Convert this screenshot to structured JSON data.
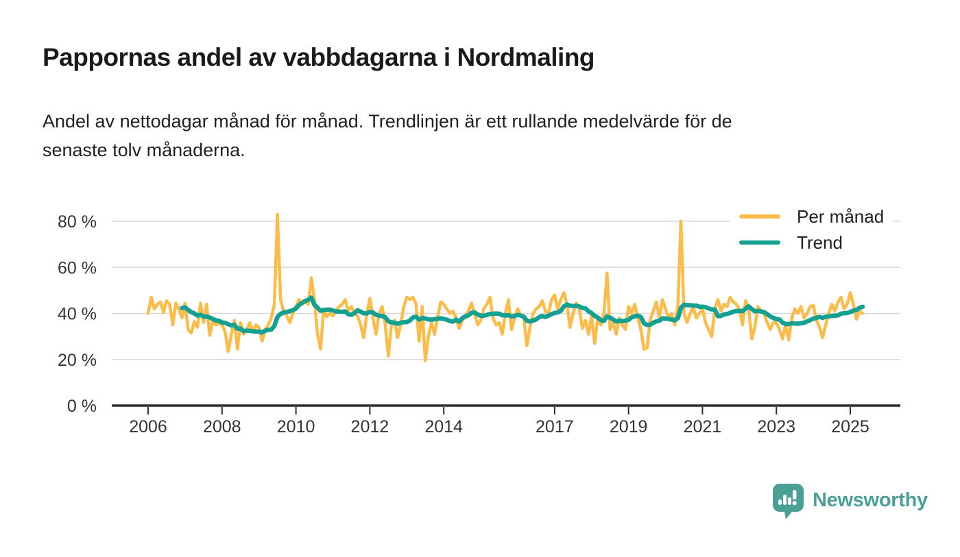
{
  "chart_data": {
    "type": "line",
    "title": "Pappornas andel av vabbdagarna i Nordmaling",
    "subtitle_lines": [
      "Andel av nettodagar månad för månad. Trendlinjen är ett rullande medelvärde för de",
      "senaste tolv månaderna."
    ],
    "unit": "%",
    "grid": true,
    "legend_position": "top-right",
    "xlabel": "",
    "ylabel": "",
    "ylim": [
      0,
      88
    ],
    "y_ticks": [
      0,
      20,
      40,
      60,
      80
    ],
    "y_tick_suffix": " %",
    "x_ticks": [
      2006,
      2008,
      2010,
      2012,
      2014,
      2017,
      2019,
      2021,
      2023,
      2025
    ],
    "x_start": {
      "year": 2006,
      "month": 1
    },
    "series": [
      {
        "name": "Per månad",
        "color": "#FBBC49",
        "monthly_values": [
          40,
          47,
          42,
          44,
          45,
          40.5,
          45.5,
          44,
          35,
          44.5,
          42,
          38,
          44.5,
          33,
          31.5,
          36.5,
          34,
          44.5,
          36,
          44,
          30.5,
          36.5,
          35,
          36,
          35,
          32,
          23.5,
          31,
          37,
          24.5,
          36,
          31,
          33,
          36,
          32,
          35,
          34,
          28,
          33,
          35,
          38,
          44,
          83,
          46,
          41,
          39,
          36,
          40,
          43,
          46,
          44,
          45,
          44,
          55.5,
          46,
          31,
          24.5,
          42,
          38.5,
          40,
          39,
          41,
          43,
          44,
          46,
          41,
          43,
          40,
          39,
          35,
          29.5,
          40,
          46.5,
          38,
          31,
          40,
          43,
          35,
          21.5,
          35,
          37,
          29.5,
          35,
          43,
          47,
          46,
          47,
          44,
          28,
          43,
          19.5,
          30,
          36,
          31,
          38,
          45,
          44,
          42,
          40,
          41,
          38,
          33.5,
          37,
          39,
          41,
          44.5,
          40,
          35,
          37,
          42,
          44,
          47,
          38,
          35,
          36,
          31,
          40,
          46,
          33,
          38,
          42,
          39,
          38,
          26,
          34,
          40,
          42,
          43,
          45.5,
          41,
          40,
          46,
          48,
          42,
          46,
          49,
          44,
          34,
          40,
          44.5,
          42,
          33.5,
          37,
          31,
          39,
          27,
          38,
          35,
          40,
          57.5,
          33,
          36,
          31,
          38,
          35,
          33,
          43,
          40,
          44,
          38,
          33,
          24.5,
          25,
          37,
          41,
          45,
          38,
          46,
          42,
          38,
          40,
          35,
          43,
          80,
          40,
          36,
          40,
          43,
          38,
          40,
          42,
          36,
          33,
          30,
          42,
          46,
          41,
          44,
          43,
          47,
          45,
          44,
          42,
          35,
          45.5,
          42,
          29,
          34,
          43,
          41,
          40,
          36,
          33,
          36,
          36,
          33,
          29,
          35,
          28.5,
          38,
          42,
          40,
          43,
          38,
          40,
          43,
          43.5,
          37,
          34,
          29.5,
          35,
          40,
          44,
          41,
          45,
          47,
          42,
          44,
          49,
          44,
          37.5,
          41,
          40
        ]
      },
      {
        "name": "Trend",
        "color": "#14A191",
        "derived": "rolling_mean",
        "window": 12
      }
    ],
    "axis_color": "#2e2e2e",
    "grid_color": "#d9d9d9",
    "tick_label_color": "#333333"
  },
  "legend": {
    "items": [
      {
        "label": "Per månad",
        "color": "#FBBC49"
      },
      {
        "label": "Trend",
        "color": "#14A191"
      }
    ]
  },
  "footer": {
    "brand": "Newsworthy",
    "brand_color": "#4BA096"
  }
}
